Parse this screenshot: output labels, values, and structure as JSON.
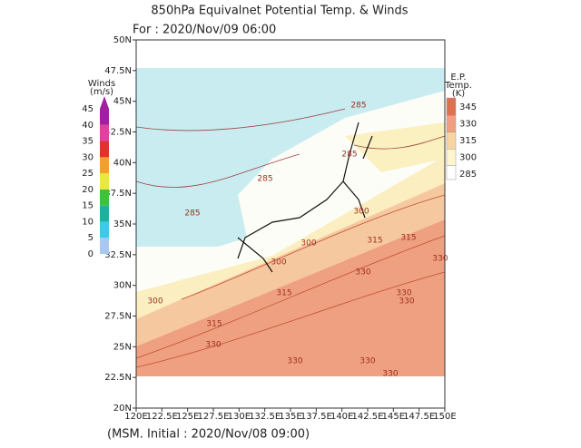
{
  "title": "850hPa Equivalnet Potential Temp. & Winds",
  "valid_time": "For : 2020/Nov/09 06:00",
  "initial_time": "(MSM. Initial : 2020/Nov/08 09:00)",
  "map": {
    "lon_ticks": [
      "120E",
      "122.5E",
      "125E",
      "127.5E",
      "130E",
      "132.5E",
      "135E",
      "137.5E",
      "140E",
      "142.5E",
      "145E",
      "147.5E",
      "150E"
    ],
    "lat_ticks": [
      "50N",
      "47.5N",
      "45N",
      "42.5N",
      "40N",
      "37.5N",
      "35N",
      "32.5N",
      "30N",
      "27.5N",
      "25N",
      "22.5N",
      "20N"
    ],
    "contour_labels": [
      "285",
      "285",
      "285",
      "285",
      "300",
      "300",
      "300",
      "300",
      "315",
      "315",
      "315",
      "315",
      "330",
      "330",
      "330",
      "330",
      "330",
      "330",
      "330",
      "330"
    ]
  },
  "wind_legend": {
    "title": "Winds",
    "unit": "(m/s)",
    "ticks": [
      0,
      5,
      10,
      15,
      20,
      25,
      30,
      35,
      40,
      45
    ],
    "colors": [
      "#a8c8f0",
      "#40c8e8",
      "#20b0a0",
      "#40c040",
      "#e8e840",
      "#f0a030",
      "#e03030",
      "#e040a0",
      "#a020a0"
    ]
  },
  "temp_legend": {
    "title": "E.P.",
    "subtitle": "Temp.",
    "unit": "(K)",
    "ticks": [
      285,
      300,
      315,
      330,
      345
    ],
    "colors": [
      "#ffffff",
      "#fff6d0",
      "#f8d4a0",
      "#f0a080",
      "#e07050"
    ]
  }
}
